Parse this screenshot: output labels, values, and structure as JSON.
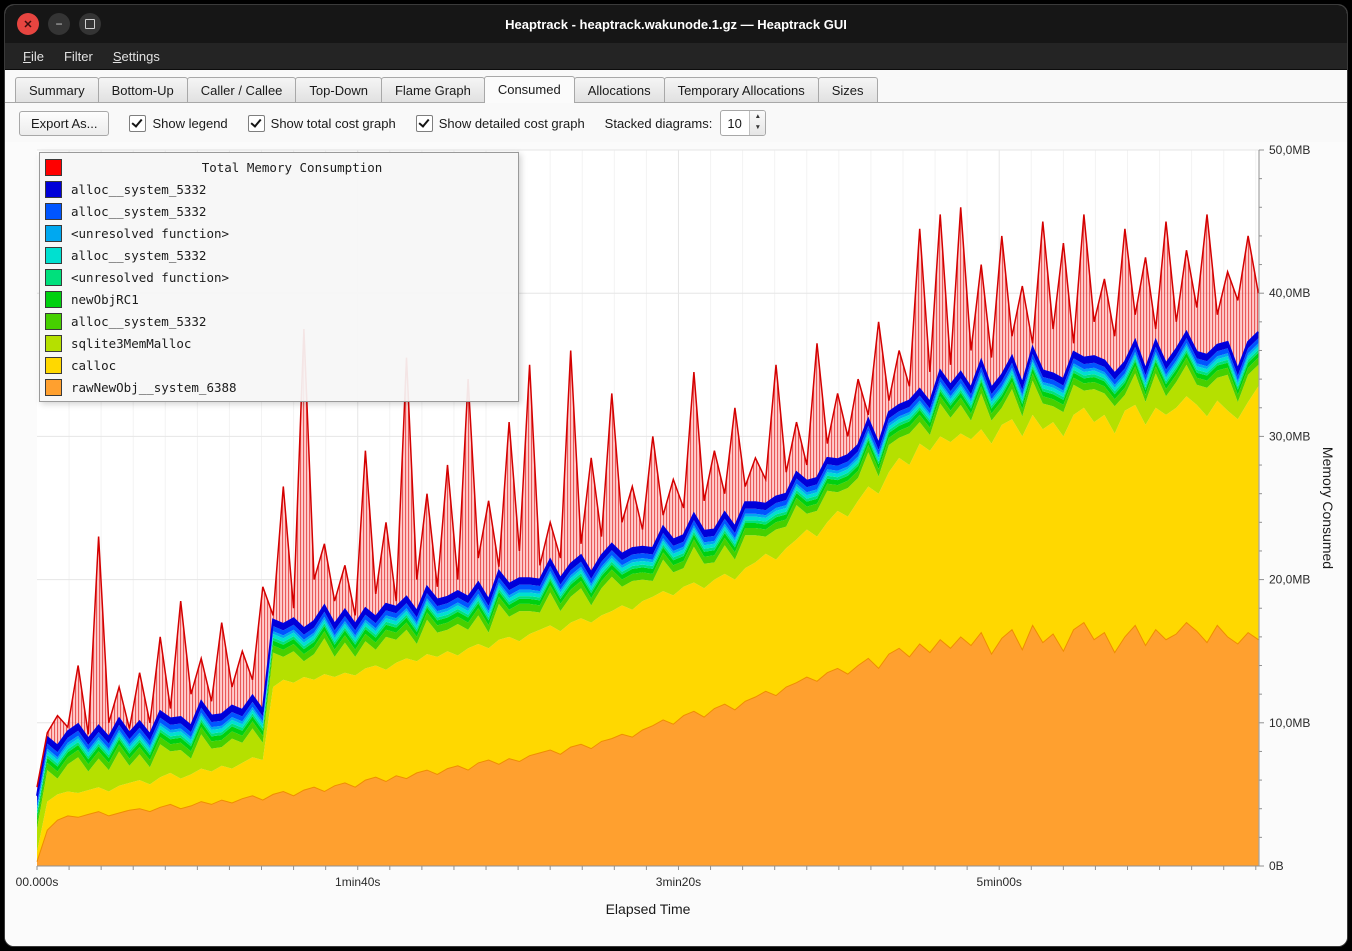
{
  "window": {
    "title": "Heaptrack - heaptrack.wakunode.1.gz — Heaptrack GUI"
  },
  "icons": {
    "close": "✕",
    "minimize": "−",
    "spin_up": "▲",
    "spin_down": "▼"
  },
  "menubar": {
    "items": [
      {
        "label": "File",
        "underline": 0
      },
      {
        "label": "Filter",
        "underline": null
      },
      {
        "label": "Settings",
        "underline": 0
      }
    ]
  },
  "tabs": {
    "items": [
      "Summary",
      "Bottom-Up",
      "Caller / Callee",
      "Top-Down",
      "Flame Graph",
      "Consumed",
      "Allocations",
      "Temporary Allocations",
      "Sizes"
    ],
    "active_index": 5
  },
  "toolbar": {
    "export_label": "Export As...",
    "checkboxes": [
      {
        "label": "Show legend",
        "checked": true
      },
      {
        "label": "Show total cost graph",
        "checked": true
      },
      {
        "label": "Show detailed cost graph",
        "checked": true
      }
    ],
    "stacked_label": "Stacked diagrams:",
    "stacked_value": "10"
  },
  "legend": {
    "title": "Total Memory Consumption",
    "title_color": "#ff0000",
    "entries": [
      {
        "label": "alloc__system_5332",
        "color": "#0000d8"
      },
      {
        "label": "alloc__system_5332",
        "color": "#0055ff"
      },
      {
        "label": "<unresolved function>",
        "color": "#00a8f0"
      },
      {
        "label": "alloc__system_5332",
        "color": "#00e0d0"
      },
      {
        "label": "<unresolved function>",
        "color": "#00e07c"
      },
      {
        "label": "newObjRC1",
        "color": "#00d010"
      },
      {
        "label": "alloc__system_5332",
        "color": "#46d000"
      },
      {
        "label": "sqlite3MemMalloc",
        "color": "#b5e000"
      },
      {
        "label": "calloc",
        "color": "#ffd800"
      },
      {
        "label": "rawNewObj__system_6388",
        "color": "#ffa02f"
      }
    ]
  },
  "chart_data": {
    "type": "area",
    "title": "Total Memory Consumption",
    "xlabel": "Elapsed Time",
    "ylabel": "Memory Consumed",
    "x_step_seconds": 3.2,
    "x_max_seconds": 381,
    "ylim_mb": [
      0,
      50
    ],
    "yticks": [
      {
        "v": 0,
        "label": "0B"
      },
      {
        "v": 10,
        "label": "10,0MB"
      },
      {
        "v": 20,
        "label": "20,0MB"
      },
      {
        "v": 30,
        "label": "30,0MB"
      },
      {
        "v": 40,
        "label": "40,0MB"
      },
      {
        "v": 50,
        "label": "50,0MB"
      }
    ],
    "xticks": [
      {
        "v": 0,
        "label": "00.000s"
      },
      {
        "v": 100,
        "label": "1min40s"
      },
      {
        "v": 200,
        "label": "3min20s"
      },
      {
        "v": 300,
        "label": "5min00s"
      }
    ],
    "stack_order_bottom_to_top": [
      "rawNewObj__system_6388",
      "calloc",
      "sqlite3MemMalloc",
      "alloc__system_5332",
      "newObjRC1",
      "<unresolved function>",
      "alloc__system_5332",
      "<unresolved function>",
      "alloc__system_5332",
      "alloc__system_5332",
      "Total Memory Consumption"
    ],
    "colors": {
      "orange": "#ffa02f",
      "orange_edge": "#ef8d00",
      "calloc": "#ffd800",
      "sqlite": "#b5e000",
      "alloc_green": "#46d000",
      "newObjRC1": "#00d010",
      "unresolved_spring": "#00e07c",
      "alloc_cyan": "#00e0d0",
      "unresolved_lightblue": "#00a8f0",
      "alloc_blue": "#0055ff",
      "alloc_darkblue": "#0000d8",
      "blue_line": "#0000e0",
      "total_fill": "rgba(255,120,120,0.38)",
      "total_hatch": "rgba(224,40,40,0.70)",
      "total_line": "#d40000",
      "grid": "#e6e6e6",
      "grid_minor": "#f3f3f3",
      "axis": "#909090"
    },
    "orange_top_mb": [
      0.3,
      2.5,
      3.2,
      3.5,
      3.4,
      3.6,
      3.8,
      3.5,
      3.7,
      3.9,
      4.0,
      3.8,
      4.1,
      4.3,
      4.0,
      4.2,
      4.5,
      4.3,
      4.6,
      4.4,
      4.7,
      4.9,
      4.6,
      5.0,
      5.2,
      4.9,
      5.3,
      5.5,
      5.2,
      5.6,
      5.8,
      5.5,
      6.0,
      6.2,
      5.9,
      6.3,
      6.1,
      6.5,
      6.7,
      6.4,
      6.8,
      7.0,
      6.7,
      7.2,
      7.4,
      7.1,
      7.5,
      7.3,
      7.7,
      7.9,
      8.1,
      7.8,
      8.3,
      8.5,
      8.2,
      8.7,
      8.9,
      9.2,
      9.0,
      9.5,
      9.8,
      10.2,
      9.9,
      10.5,
      10.8,
      10.4,
      11.0,
      11.3,
      10.9,
      11.5,
      11.8,
      12.2,
      11.9,
      12.5,
      12.8,
      13.2,
      12.9,
      13.5,
      13.8,
      13.4,
      14.0,
      14.5,
      13.8,
      14.8,
      15.2,
      14.6,
      15.5,
      14.9,
      15.8,
      15.2,
      16.0,
      15.4,
      16.3,
      14.8,
      15.9,
      16.5,
      15.1,
      16.8,
      15.6,
      16.2,
      15.0,
      16.5,
      17.0,
      15.8,
      16.3,
      14.9,
      16.0,
      16.8,
      15.4,
      16.5,
      15.8,
      16.2,
      17.0,
      16.4,
      15.6,
      16.8,
      16.0,
      15.5,
      16.3,
      15.8
    ],
    "calloc_top_mb": [
      1.0,
      4.5,
      5.0,
      5.2,
      5.1,
      5.3,
      5.5,
      5.2,
      5.6,
      5.8,
      6.0,
      5.7,
      6.2,
      6.5,
      6.1,
      6.4,
      6.8,
      6.6,
      7.0,
      6.8,
      7.2,
      7.6,
      7.4,
      12.5,
      13.0,
      12.8,
      13.2,
      13.0,
      13.4,
      13.2,
      13.5,
      13.3,
      13.8,
      14.0,
      13.7,
      14.2,
      14.5,
      14.3,
      14.8,
      14.6,
      15.0,
      14.7,
      15.2,
      15.5,
      15.2,
      15.8,
      16.0,
      15.7,
      16.2,
      16.5,
      16.8,
      16.4,
      17.0,
      17.3,
      17.0,
      17.5,
      17.8,
      18.2,
      17.9,
      18.5,
      18.8,
      19.2,
      18.9,
      19.5,
      19.8,
      19.4,
      20.0,
      20.4,
      20.0,
      20.8,
      21.2,
      21.8,
      21.4,
      22.2,
      22.8,
      23.5,
      23.0,
      24.0,
      24.8,
      24.4,
      25.5,
      26.5,
      26.0,
      27.5,
      28.5,
      28.0,
      29.5,
      29.0,
      30.0,
      29.6,
      30.2,
      29.8,
      30.5,
      29.5,
      30.8,
      31.2,
      30.0,
      31.5,
      30.5,
      31.0,
      30.0,
      31.5,
      32.0,
      31.0,
      31.5,
      30.2,
      31.8,
      32.2,
      30.8,
      32.0,
      31.5,
      32.0,
      32.8,
      32.2,
      31.4,
      32.5,
      31.8,
      31.2,
      32.4,
      33.5
    ],
    "sqlite_band_mb": [
      1.6,
      2.2,
      1.1,
      1.9,
      2.5,
      1.3,
      2.0,
      1.5,
      2.4,
      1.2,
      1.8,
      1.2,
      2.3,
      1.5,
      2.0,
      1.1,
      2.4,
      1.6,
      1.3,
      2.1,
      1.4,
      2.0,
      1.2,
      2.4,
      1.6,
      2.2,
      1.1,
      1.8,
      2.5,
      1.4,
      2.1,
      1.3,
      1.9,
      1.1,
      2.3,
      1.6,
      2.0,
      1.2,
      2.4,
      1.7,
      1.5,
      2.2,
      1.3,
      2.0,
      1.1,
      2.5,
      1.4,
      2.1,
      1.6,
      1.2,
      2.3,
      1.4,
      1.8,
      2.1,
      1.2,
      1.9,
      2.4,
      1.3,
      2.0,
      1.5,
      1.1,
      2.2,
      1.6,
      1.3,
      2.5,
      1.7,
      1.2,
      2.0,
      1.4,
      2.3,
      1.9,
      1.2,
      2.1,
      1.5,
      2.4,
      1.1,
      1.8,
      2.2,
      1.3,
      2.0,
      1.6,
      2.4,
      1.2,
      1.9,
      1.4,
      2.2,
      1.5,
      1.1,
      2.3,
      1.7,
      2.0,
      1.3,
      2.5,
      1.6,
      1.2,
      2.1,
      1.4,
      2.4,
      1.8,
      1.1,
      1.7,
      2.1,
      1.2,
      2.3,
      1.5,
      1.9,
      1.1,
      2.2,
      1.6,
      2.4,
      1.3,
      1.8,
      2.2,
      1.4,
      2.0,
      1.6,
      2.5,
      1.2,
      1.9,
      1.5
    ],
    "thin_bands_mb": {
      "alloc_green": 0.5,
      "newObjRC1": 0.35,
      "unresolved_spring": 0.2,
      "alloc_cyan": 0.25,
      "unresolved_lightblue": 0.2,
      "alloc_blue": 0.35,
      "alloc_darkblue": 0.45
    },
    "total_mb": [
      5.5,
      7.5,
      10.5,
      8.0,
      14.0,
      9.0,
      23.0,
      10.0,
      12.5,
      9.5,
      13.5,
      10.0,
      16.0,
      11.0,
      18.5,
      12.0,
      14.5,
      11.5,
      17.0,
      12.5,
      15.0,
      13.0,
      19.5,
      16.0,
      26.5,
      18.0,
      37.5,
      20.0,
      22.5,
      18.5,
      21.0,
      17.5,
      29.0,
      19.0,
      24.0,
      18.5,
      35.5,
      20.0,
      26.0,
      19.5,
      28.0,
      20.0,
      34.0,
      21.5,
      25.5,
      20.5,
      31.0,
      22.0,
      35.0,
      21.0,
      24.0,
      21.5,
      36.0,
      22.5,
      28.5,
      23.0,
      33.0,
      24.0,
      26.5,
      23.5,
      30.0,
      24.5,
      27.0,
      25.0,
      34.5,
      25.5,
      29.0,
      26.0,
      32.0,
      26.5,
      28.5,
      27.0,
      35.0,
      27.5,
      31.0,
      28.0,
      36.5,
      29.5,
      33.0,
      30.0,
      34.0,
      31.5,
      38.0,
      32.5,
      36.0,
      33.5,
      44.5,
      34.5,
      45.5,
      35.0,
      46.0,
      36.0,
      42.0,
      35.5,
      44.0,
      37.0,
      40.5,
      36.5,
      45.0,
      37.5,
      43.5,
      36.5,
      45.5,
      38.0,
      41.0,
      37.0,
      44.5,
      38.5,
      42.5,
      37.5,
      45.0,
      38.0,
      43.0,
      39.0,
      45.5,
      38.5,
      41.5,
      39.5,
      44.0,
      40.0
    ]
  }
}
